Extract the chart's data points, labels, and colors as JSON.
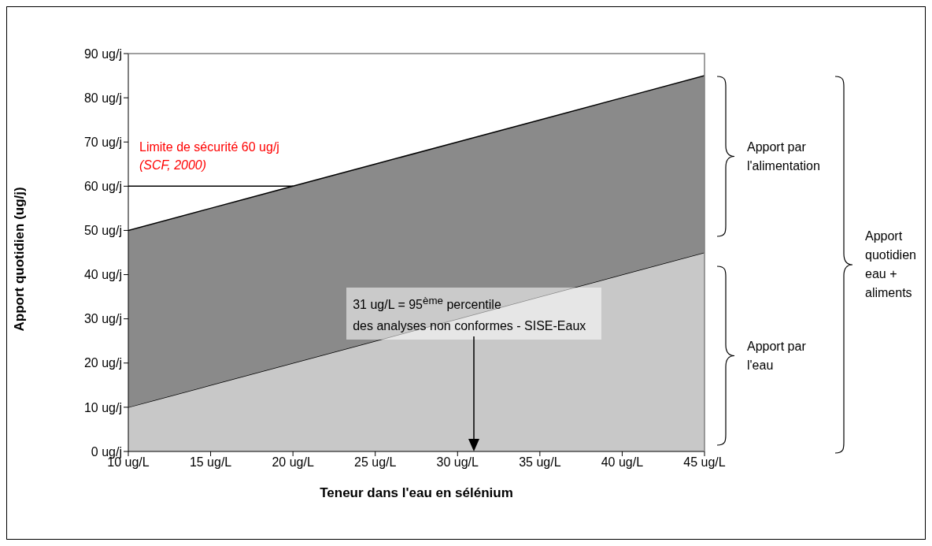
{
  "chart_data": {
    "type": "area",
    "stacked": true,
    "xlabel": "Teneur dans l'eau en sélénium",
    "ylabel": "Apport quotidien (ug/j)",
    "x": [
      10,
      15,
      20,
      25,
      30,
      35,
      40,
      45
    ],
    "series": [
      {
        "color": "#c8c8c8",
        "values": [
          10,
          15,
          20,
          25,
          30,
          35,
          40,
          45
        ]
      },
      {
        "color": "#8a8a8a",
        "values": [
          40,
          40,
          40,
          40,
          40,
          40,
          40,
          40
        ]
      }
    ],
    "xlim": [
      10,
      45
    ],
    "xticks": [
      {
        "value": 10,
        "label": "10 ug/L"
      },
      {
        "value": 15,
        "label": "15 ug/L"
      },
      {
        "value": 20,
        "label": "20 ug/L"
      },
      {
        "value": 25,
        "label": "25 ug/L"
      },
      {
        "value": 30,
        "label": "30 ug/L"
      },
      {
        "value": 35,
        "label": "35 ug/L"
      },
      {
        "value": 40,
        "label": "40 ug/L"
      },
      {
        "value": 45,
        "label": "45 ug/L"
      }
    ],
    "ylim": [
      0,
      90
    ],
    "yticks": [
      {
        "value": 0,
        "label": "0 ug/j"
      },
      {
        "value": 10,
        "label": "10 ug/j"
      },
      {
        "value": 20,
        "label": "20 ug/j"
      },
      {
        "value": 30,
        "label": "30 ug/j"
      },
      {
        "value": 40,
        "label": "40 ug/j"
      },
      {
        "value": 50,
        "label": "50 ug/j"
      },
      {
        "value": 60,
        "label": "60 ug/j"
      },
      {
        "value": 70,
        "label": "70 ug/j"
      },
      {
        "value": 80,
        "label": "80 ug/j"
      },
      {
        "value": 90,
        "label": "90 ug/j"
      }
    ],
    "ref_lines": [
      {
        "axis": "y",
        "value": 60,
        "label": "Limite de sécurité 60 ug/j"
      }
    ],
    "annotations": [
      "(SCF, 2000)",
      {
        "text": "31 ug/L = 95$^{ème}$ percentile\ndes analyses non conformes - SISE-Eaux",
        "x": 31
      },
      "Apport par l'alimentation",
      "Apport par l'eau",
      "Apport quotidien eau + aliments"
    ]
  }
}
